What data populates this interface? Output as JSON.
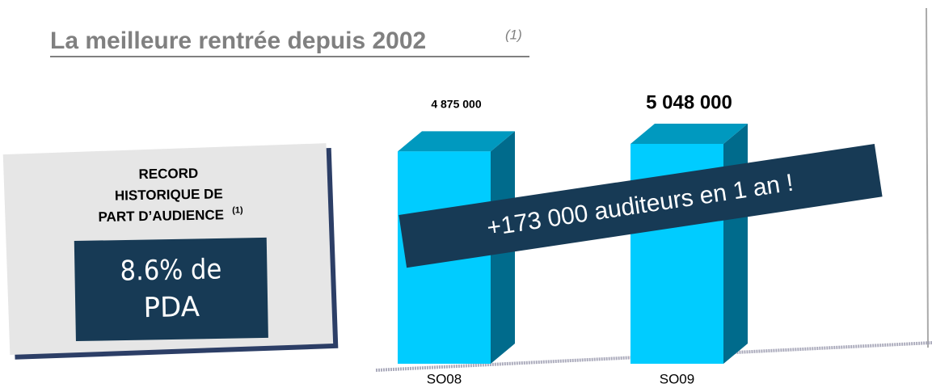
{
  "chart_data": {
    "type": "bar",
    "title": "La meilleure rentrée depuis 2002",
    "title_note": "(1)",
    "categories": [
      "SO08",
      "SO09"
    ],
    "values": [
      4875000,
      5048000
    ],
    "value_labels": [
      "4 875 000",
      "5 048 000"
    ],
    "color": "#00ccff",
    "side_color": "#006b8c",
    "top_color": "#0099bf",
    "record_box": {
      "lines": [
        "RECORD",
        "HISTORIQUE DE",
        "PART D’AUDIENCE"
      ],
      "note": "(1)",
      "highlight": [
        "8.6% de",
        "PDA"
      ]
    },
    "banner": "+173 000 auditeurs en 1 an !"
  }
}
